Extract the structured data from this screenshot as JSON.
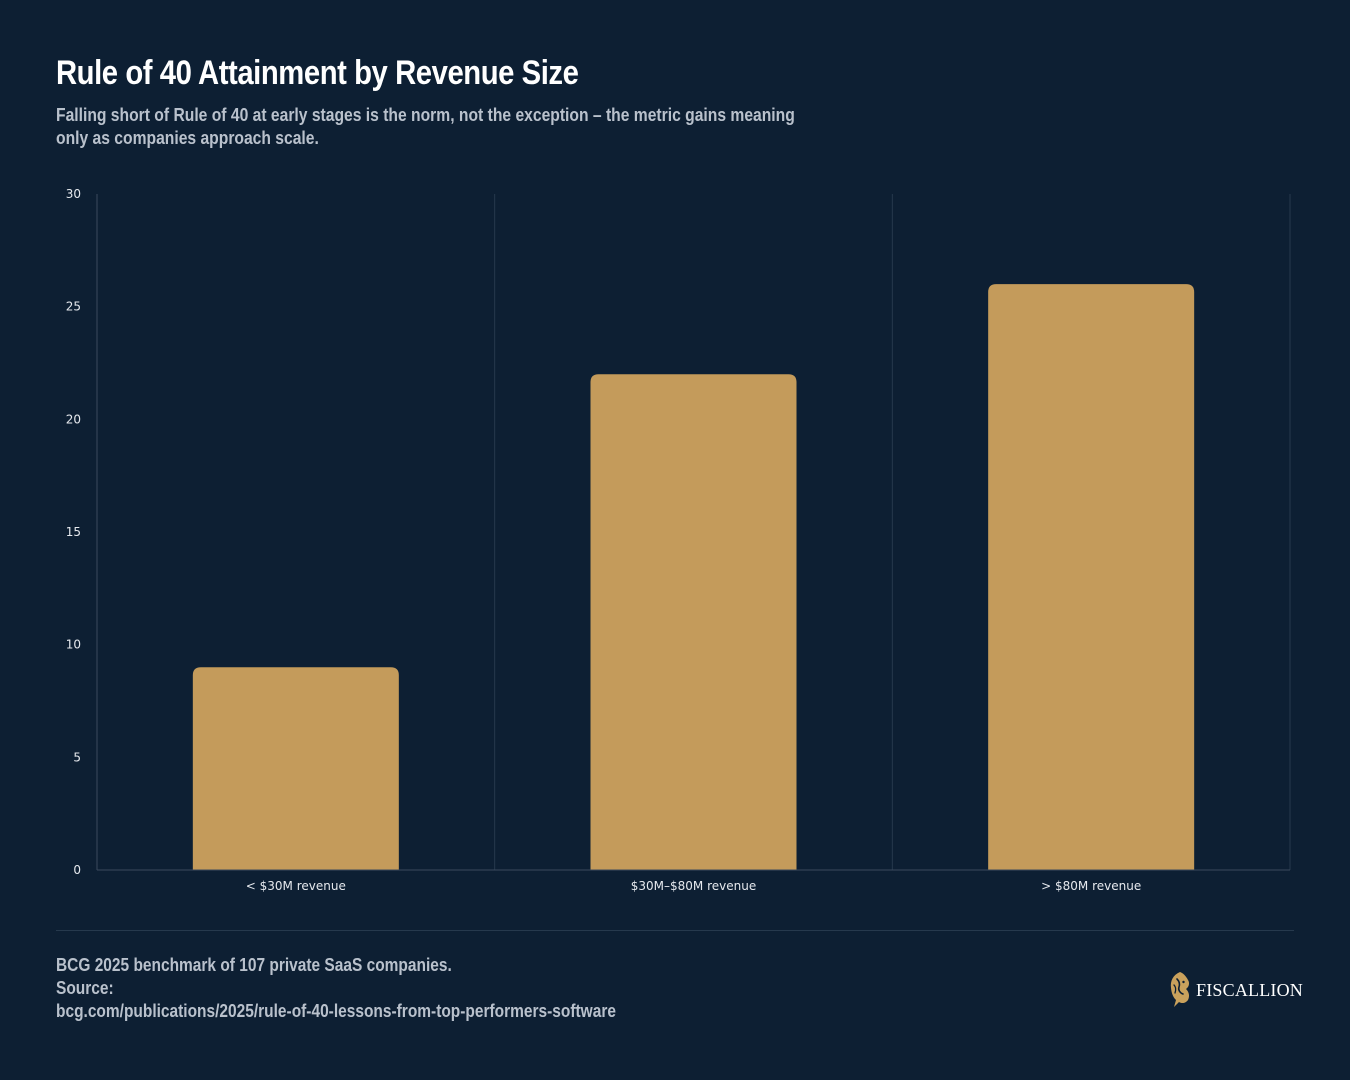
{
  "header": {
    "title": "Rule of 40 Attainment by Revenue Size",
    "subtitle": "Falling short of Rule of 40 at early stages is the norm, not the exception – the metric gains meaning only as companies approach scale."
  },
  "chart_data": {
    "type": "bar",
    "categories": [
      "< $30M revenue",
      "$30M–$80M revenue",
      "> $80M revenue"
    ],
    "values": [
      9,
      22,
      26
    ],
    "ylim": [
      0,
      30
    ],
    "yticks": [
      0,
      5,
      10,
      15,
      20,
      25,
      30
    ],
    "grid": "vertical separators between categories",
    "legend": "none"
  },
  "footer": {
    "note": "BCG 2025 benchmark of 107 private SaaS companies.",
    "source_label": "Source:",
    "source_url": "bcg.com/publications/2025/rule-of-40-lessons-from-top-performers-software"
  },
  "brand": {
    "name": "FISCALLION",
    "logo_icon": "lion-head-icon"
  },
  "colors": {
    "background": "#0d1f33",
    "bar": "#c49b5b",
    "axis": "#3a4a5c",
    "grid": "#26394d",
    "text_muted": "#b9c1cc"
  }
}
